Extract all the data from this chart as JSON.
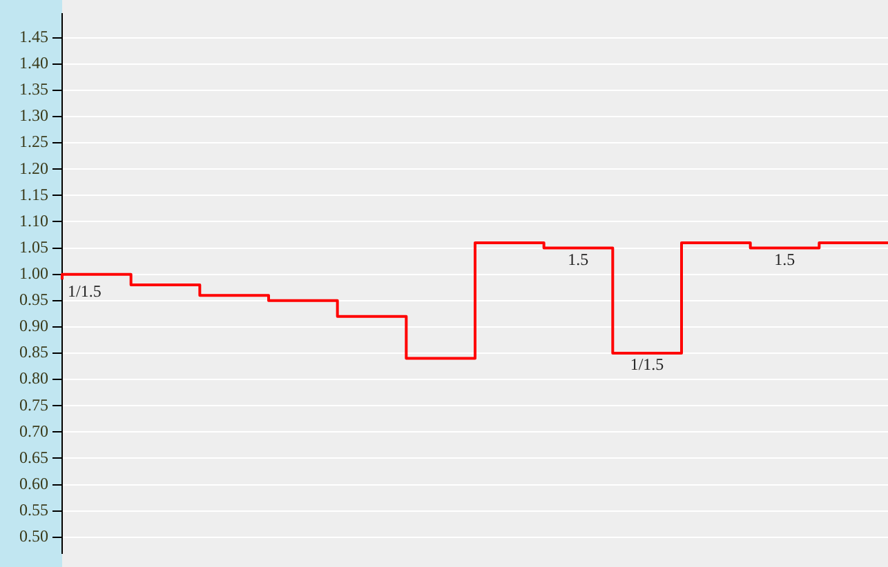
{
  "chart_data": {
    "type": "step",
    "categories": [
      null,
      null,
      null,
      null,
      null,
      null,
      null,
      null,
      null,
      null,
      null,
      null,
      null
    ],
    "series": [
      {
        "color": "#ff0000",
        "values": [
          0.99,
          1.0,
          0.98,
          0.96,
          0.95,
          0.92,
          0.84,
          1.06,
          1.05,
          0.85,
          1.06,
          1.05,
          1.06
        ]
      }
    ],
    "ylim": [
      0.47,
      1.495
    ],
    "yticks": [
      {
        "value": 0.5,
        "label": "0.50"
      },
      0.55,
      {
        "value": 0.6,
        "label": "0.60"
      },
      0.65,
      {
        "value": 0.7,
        "label": "0.70"
      },
      0.75,
      {
        "value": 0.8,
        "label": "0.80"
      },
      0.85,
      {
        "value": 0.9,
        "label": "0.90"
      },
      0.95,
      {
        "value": 1,
        "label": "1.00"
      },
      1.05,
      {
        "value": 1.1,
        "label": "1.10"
      },
      1.15,
      {
        "value": 1.2,
        "label": "1.20"
      },
      1.25,
      {
        "value": 1.3,
        "label": "1.30"
      },
      1.35,
      {
        "value": 1.4,
        "label": "1.40"
      },
      1.45
    ],
    "annotations": [
      {
        "text": "1/1.5",
        "y": 0.99
      },
      {
        "text": "1.5",
        "y": 1.05
      },
      {
        "text": "1/1.5",
        "y": 0.85
      },
      {
        "text": "1.5",
        "y": 1.05
      }
    ],
    "grid": "y",
    "legend": false,
    "tick_labels": "y",
    "marker": "none",
    "line_style": "solid"
  }
}
